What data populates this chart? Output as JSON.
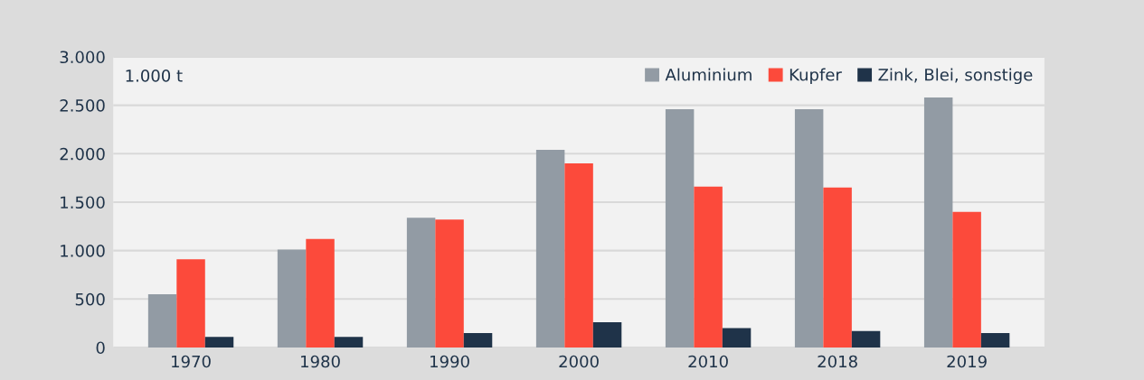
{
  "chart_data": {
    "type": "bar",
    "categories": [
      "1970",
      "1980",
      "1990",
      "2000",
      "2010",
      "2018",
      "2019"
    ],
    "series": [
      {
        "name": "Aluminium",
        "color": "#929ba4",
        "values": [
          550,
          1010,
          1340,
          2040,
          2460,
          2460,
          2580
        ]
      },
      {
        "name": "Kupfer",
        "color": "#fc4a3b",
        "values": [
          910,
          1120,
          1320,
          1900,
          1660,
          1650,
          1400
        ]
      },
      {
        "name": "Zink, Blei, sonstige",
        "color": "#1f3349",
        "values": [
          110,
          110,
          150,
          260,
          200,
          170,
          150
        ]
      }
    ],
    "annotations": [
      "1.000 t"
    ],
    "ylim": [
      0,
      3000
    ],
    "yticks": [
      {
        "value": 0,
        "label": "0"
      },
      {
        "value": 500,
        "label": "500"
      },
      {
        "value": 1000,
        "label": "1.000"
      },
      {
        "value": 1500,
        "label": "1.500"
      },
      {
        "value": 2000,
        "label": "2.000"
      },
      {
        "value": 2500,
        "label": "2.500"
      },
      {
        "value": 3000,
        "label": "3.000"
      }
    ],
    "grid": "y",
    "legend": "top right"
  }
}
